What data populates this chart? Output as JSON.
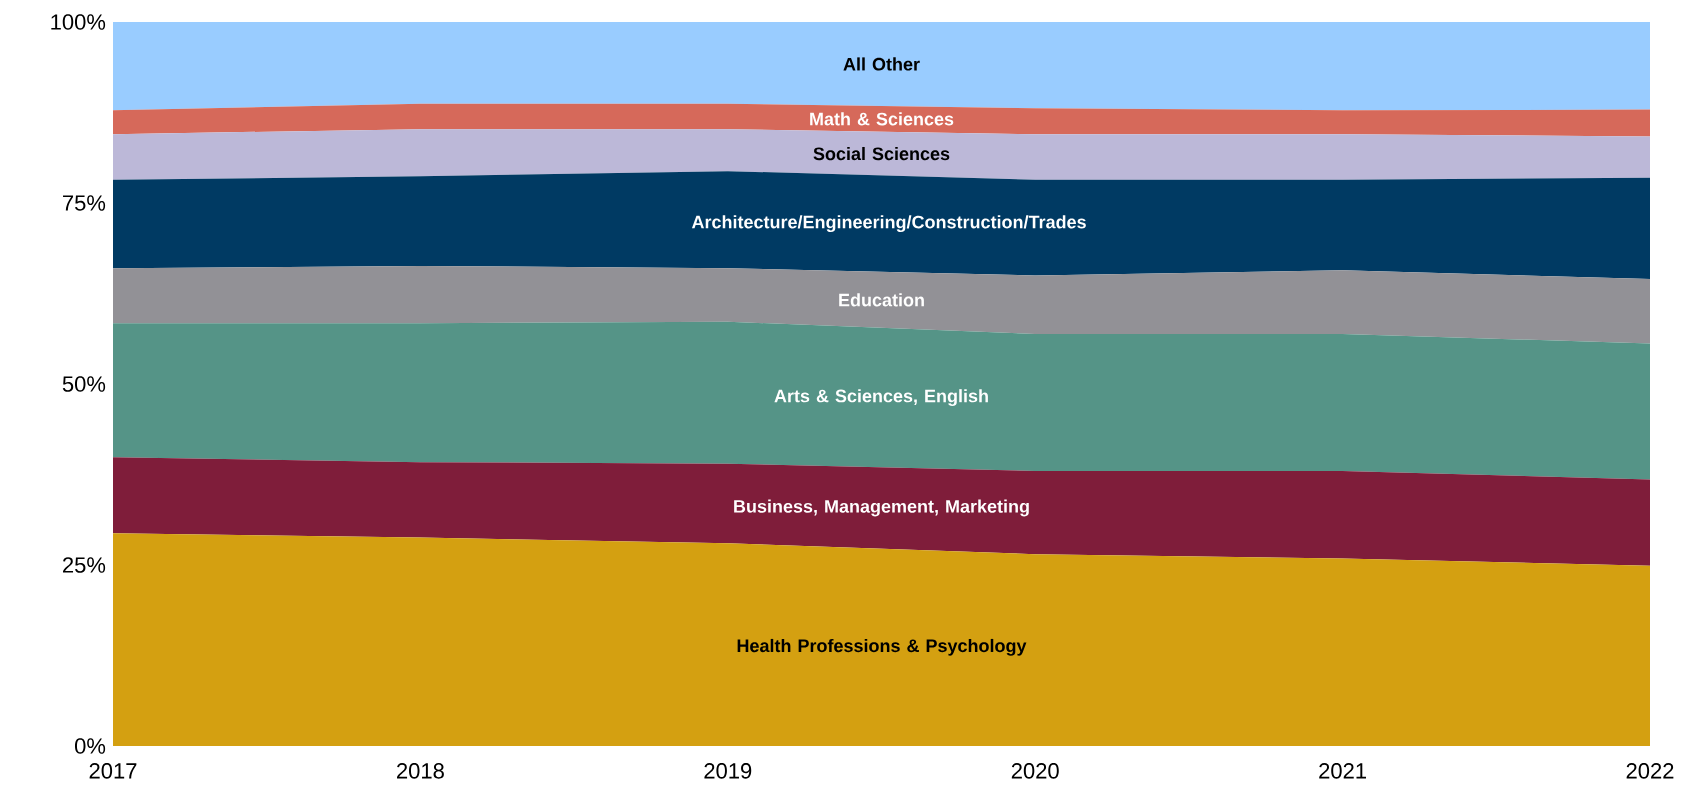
{
  "chart_data": {
    "type": "area",
    "stacked": true,
    "x": [
      2017,
      2018,
      2019,
      2020,
      2021,
      2022
    ],
    "xlim": [
      2017,
      2022
    ],
    "xticks": [
      2017,
      2018,
      2019,
      2020,
      2021,
      2022
    ],
    "ylim": [
      0,
      100
    ],
    "yticks": [
      {
        "value": 0,
        "label": "0%"
      },
      {
        "value": 25,
        "label": "25%"
      },
      {
        "value": 50,
        "label": "50%"
      },
      {
        "value": 75,
        "label": "75%"
      },
      {
        "value": 100,
        "label": "100%"
      }
    ],
    "series": [
      {
        "name": "Health Professions & Psychology",
        "color": "#d4a011",
        "values": [
          29.4,
          28.8,
          28.0,
          26.5,
          25.9,
          24.9
        ]
      },
      {
        "name": "Business, Management, Marketing",
        "color": "#7f1d3a",
        "values": [
          10.5,
          10.4,
          11.0,
          11.5,
          12.1,
          11.9
        ]
      },
      {
        "name": "Arts & Sciences, English",
        "color": "#559487",
        "values": [
          18.5,
          19.2,
          19.6,
          18.9,
          18.9,
          18.8
        ]
      },
      {
        "name": "Education",
        "color": "#929196",
        "values": [
          7.6,
          7.9,
          7.4,
          8.1,
          8.8,
          8.9
        ]
      },
      {
        "name": "Architecture/Engineering/Construction/Trades",
        "color": "#003a63",
        "values": [
          12.2,
          12.4,
          13.4,
          13.2,
          12.5,
          14.0
        ]
      },
      {
        "name": "Social Sciences",
        "color": "#bcb8d8",
        "values": [
          6.3,
          6.5,
          5.8,
          6.3,
          6.3,
          5.7
        ]
      },
      {
        "name": "Math & Sciences",
        "color": "#d6695a",
        "values": [
          3.3,
          3.5,
          3.5,
          3.6,
          3.3,
          3.7
        ]
      },
      {
        "name": "All Other",
        "color": "#99ccff",
        "values": [
          12.2,
          11.3,
          11.3,
          11.9,
          12.2,
          12.1
        ]
      }
    ]
  }
}
